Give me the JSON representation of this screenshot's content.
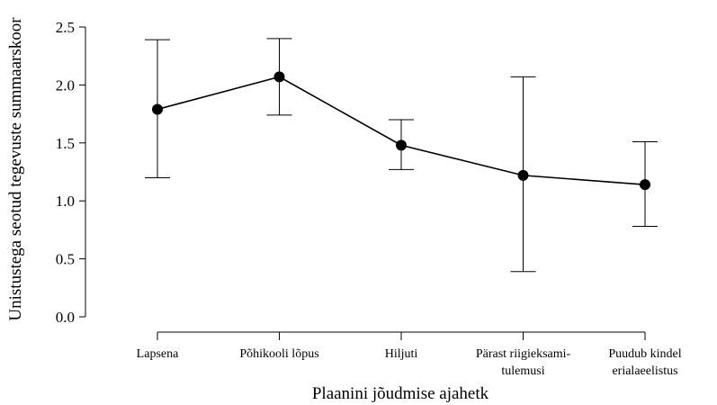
{
  "chart_data": {
    "type": "line",
    "xlabel": "Plaanini jõudmise ajahetk",
    "ylabel": "Unistustega seotud tegevuste summaarskoor",
    "ylim": [
      0,
      2.5
    ],
    "yticks": [
      "0.0",
      "0.5",
      "1.0",
      "1.5",
      "2.0",
      "2.5"
    ],
    "grid": false,
    "categories": [
      [
        "Lapsena"
      ],
      [
        "Põhikooli lõpus"
      ],
      [
        "Hiljuti"
      ],
      [
        "Pärast riigieksami-",
        "tulemusi"
      ],
      [
        "Puudub kindel",
        "erialaeelistus"
      ]
    ],
    "series": [
      {
        "values": [
          1.79,
          2.07,
          1.48,
          1.22,
          1.14
        ],
        "lower": [
          1.2,
          1.74,
          1.27,
          0.39,
          0.78
        ],
        "upper": [
          2.39,
          2.4,
          1.7,
          2.07,
          1.51
        ],
        "color": "#000000"
      }
    ]
  }
}
